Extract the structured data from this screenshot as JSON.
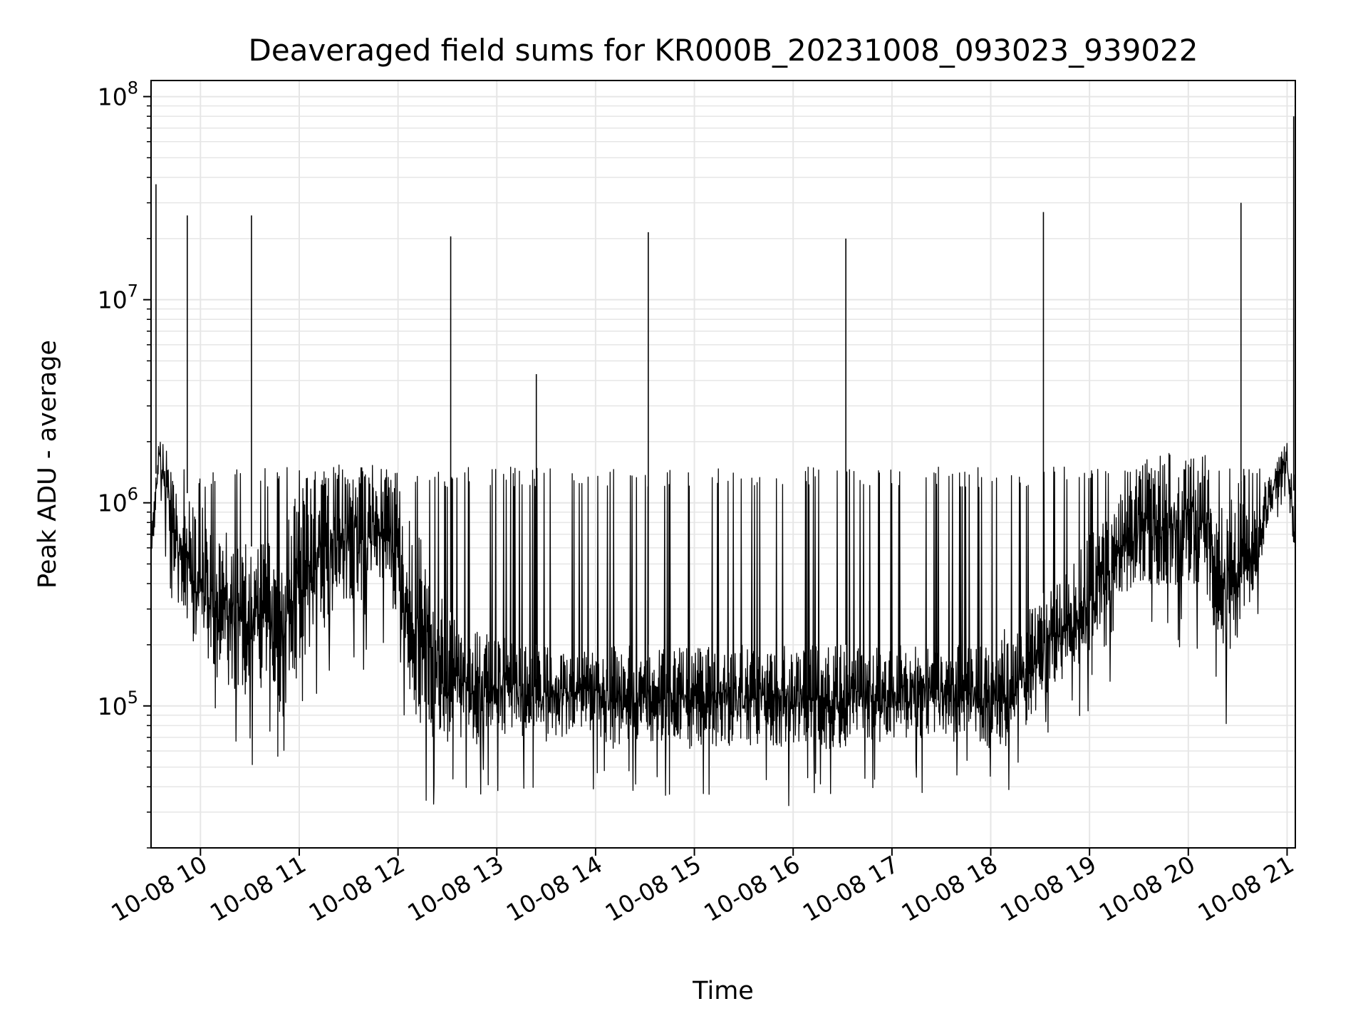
{
  "chart_data": {
    "type": "line",
    "title": "Deaveraged field sums for KR000B_20231008_093023_939022",
    "xlabel": "Time",
    "ylabel": "Peak ADU - average",
    "y_scale": "log",
    "ylim": [
      20000,
      120000000
    ],
    "xlim": [
      "2023-10-08 09:30",
      "2023-10-08 21:05"
    ],
    "grid": true,
    "line_color": "#000000",
    "grid_color": "#e6e6e6",
    "x_ticks": [
      "10-08 10",
      "10-08 11",
      "10-08 12",
      "10-08 13",
      "10-08 14",
      "10-08 15",
      "10-08 16",
      "10-08 17",
      "10-08 18",
      "10-08 19",
      "10-08 20",
      "10-08 21"
    ],
    "y_ticks": [
      {
        "value": 100000,
        "base": "10",
        "exp": "5"
      },
      {
        "value": 1000000,
        "base": "10",
        "exp": "6"
      },
      {
        "value": 10000000,
        "base": "10",
        "exp": "7"
      },
      {
        "value": 100000000,
        "base": "10",
        "exp": "8"
      }
    ],
    "series": [
      {
        "x": [
          "2023-10-08 09:30",
          "2023-10-08 09:35",
          "2023-10-08 09:40",
          "2023-10-08 09:45",
          "2023-10-08 09:50",
          "2023-10-08 09:55",
          "2023-10-08 10:00",
          "2023-10-08 10:10",
          "2023-10-08 10:20",
          "2023-10-08 10:30",
          "2023-10-08 10:40",
          "2023-10-08 10:50",
          "2023-10-08 11:00",
          "2023-10-08 11:10",
          "2023-10-08 11:20",
          "2023-10-08 11:30",
          "2023-10-08 11:40",
          "2023-10-08 11:50",
          "2023-10-08 12:00",
          "2023-10-08 12:10",
          "2023-10-08 12:20",
          "2023-10-08 12:30",
          "2023-10-08 12:40",
          "2023-10-08 12:50",
          "2023-10-08 13:00",
          "2023-10-08 13:10",
          "2023-10-08 13:20",
          "2023-10-08 13:30",
          "2023-10-08 13:40",
          "2023-10-08 13:50",
          "2023-10-08 14:00",
          "2023-10-08 14:10",
          "2023-10-08 14:20",
          "2023-10-08 14:30",
          "2023-10-08 14:40",
          "2023-10-08 14:50",
          "2023-10-08 15:00",
          "2023-10-08 15:10",
          "2023-10-08 15:20",
          "2023-10-08 15:30",
          "2023-10-08 15:40",
          "2023-10-08 15:50",
          "2023-10-08 16:00",
          "2023-10-08 16:10",
          "2023-10-08 16:20",
          "2023-10-08 16:30",
          "2023-10-08 16:40",
          "2023-10-08 16:50",
          "2023-10-08 17:00",
          "2023-10-08 17:10",
          "2023-10-08 17:20",
          "2023-10-08 17:30",
          "2023-10-08 17:40",
          "2023-10-08 17:50",
          "2023-10-08 18:00",
          "2023-10-08 18:10",
          "2023-10-08 18:20",
          "2023-10-08 18:30",
          "2023-10-08 18:40",
          "2023-10-08 18:50",
          "2023-10-08 19:00",
          "2023-10-08 19:10",
          "2023-10-08 19:20",
          "2023-10-08 19:30",
          "2023-10-08 19:40",
          "2023-10-08 19:50",
          "2023-10-08 20:00",
          "2023-10-08 20:10",
          "2023-10-08 20:20",
          "2023-10-08 20:30",
          "2023-10-08 20:40",
          "2023-10-08 20:50",
          "2023-10-08 21:00",
          "2023-10-08 21:05"
        ],
        "low": [
          400000,
          1400000,
          600000,
          250000,
          180000,
          120000,
          150000,
          100000,
          90000,
          80000,
          80000,
          60000,
          100000,
          150000,
          200000,
          250000,
          200000,
          300000,
          200000,
          60000,
          50000,
          50000,
          50000,
          50000,
          60000,
          60000,
          55000,
          55000,
          60000,
          65000,
          60000,
          50000,
          50000,
          55000,
          55000,
          50000,
          50000,
          50000,
          50000,
          50000,
          50000,
          50000,
          50000,
          50000,
          50000,
          50000,
          55000,
          55000,
          55000,
          55000,
          55000,
          55000,
          55000,
          55000,
          50000,
          50000,
          60000,
          80000,
          100000,
          120000,
          150000,
          150000,
          200000,
          300000,
          300000,
          300000,
          300000,
          300000,
          100000,
          150000,
          300000,
          800000,
          1200000,
          400000
        ],
        "high": [
          700000,
          2200000,
          2000000,
          1500000,
          1200000,
          1000000,
          1000000,
          800000,
          700000,
          600000,
          700000,
          700000,
          1300000,
          1600000,
          1600000,
          1600000,
          1600000,
          1500000,
          1400000,
          800000,
          500000,
          300000,
          250000,
          250000,
          250000,
          200000,
          200000,
          200000,
          180000,
          180000,
          200000,
          200000,
          200000,
          200000,
          200000,
          200000,
          200000,
          200000,
          200000,
          200000,
          200000,
          200000,
          200000,
          200000,
          200000,
          200000,
          200000,
          200000,
          200000,
          200000,
          200000,
          200000,
          200000,
          200000,
          200000,
          250000,
          300000,
          350000,
          400000,
          500000,
          700000,
          900000,
          1200000,
          1600000,
          1800000,
          1800000,
          1800000,
          1800000,
          1200000,
          1000000,
          1000000,
          1500000,
          2000000,
          1000000
        ],
        "spikes": [
          {
            "x": "2023-10-08 09:33",
            "value": 37000000
          },
          {
            "x": "2023-10-08 09:52",
            "value": 26000000
          },
          {
            "x": "2023-10-08 10:31",
            "value": 26000000
          },
          {
            "x": "2023-10-08 12:32",
            "value": 20500000
          },
          {
            "x": "2023-10-08 13:24",
            "value": 4300000
          },
          {
            "x": "2023-10-08 14:32",
            "value": 21500000
          },
          {
            "x": "2023-10-08 16:32",
            "value": 20000000
          },
          {
            "x": "2023-10-08 18:32",
            "value": 27000000
          },
          {
            "x": "2023-10-08 20:32",
            "value": 30000000
          },
          {
            "x": "2023-10-08 21:04",
            "value": 80000000
          }
        ],
        "burst_tops": [
          1500000,
          1500000,
          1500000,
          1500000,
          1500000,
          1500000
        ]
      }
    ]
  }
}
